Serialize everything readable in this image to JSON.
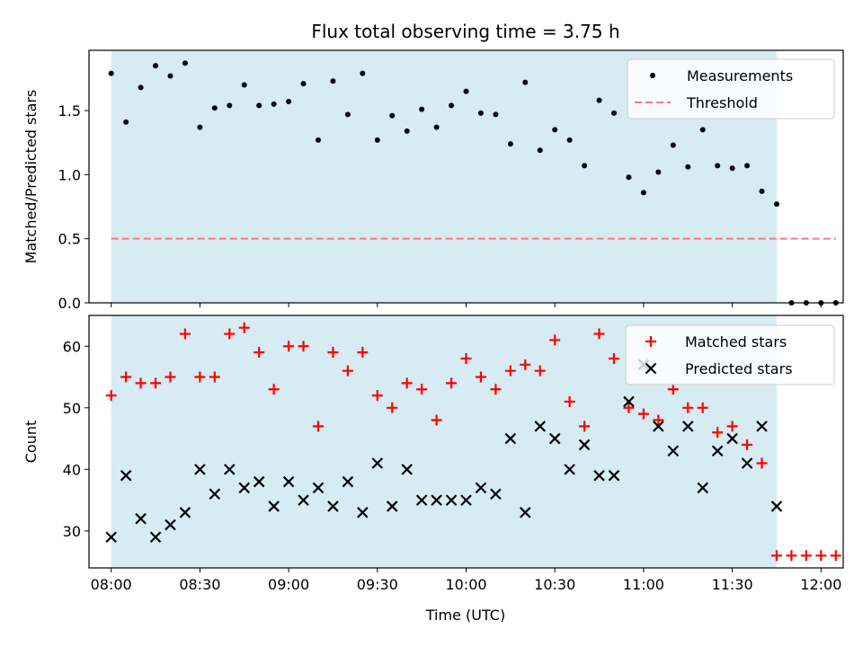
{
  "chart_data": {
    "title": "Flux total observing time = 3.75 h",
    "xlabel": "Time (UTC)",
    "x_tick_labels": [
      "08:00",
      "08:30",
      "09:00",
      "09:30",
      "10:00",
      "10:30",
      "11:00",
      "11:30",
      "12:00"
    ],
    "x_ticks_min": [
      0,
      30,
      60,
      90,
      120,
      150,
      180,
      210,
      240
    ],
    "xlim_min": [
      -7.5,
      247.5
    ],
    "shaded_span_min": [
      0,
      225
    ],
    "shade_color": "#add8e6",
    "panels": [
      {
        "type": "scatter",
        "ylabel": "Matched/Predicted stars",
        "ylim": [
          0,
          1.97
        ],
        "y_ticks": [
          0.0,
          0.5,
          1.0,
          1.5
        ],
        "y_tick_labels": [
          "0.0",
          "0.5",
          "1.0",
          "1.5"
        ],
        "legend_position": "top-right",
        "series": [
          {
            "name": "Measurements",
            "marker": "dot",
            "color": "#000000",
            "x_min": [
              0,
              5,
              10,
              15,
              20,
              25,
              30,
              35,
              40,
              45,
              50,
              55,
              60,
              65,
              70,
              75,
              80,
              85,
              90,
              95,
              100,
              105,
              110,
              115,
              120,
              125,
              130,
              135,
              140,
              145,
              150,
              155,
              160,
              165,
              170,
              175,
              180,
              185,
              190,
              195,
              200,
              205,
              210,
              215,
              220,
              225,
              230,
              235,
              240,
              245
            ],
            "y": [
              1.79,
              1.41,
              1.68,
              1.85,
              1.77,
              1.87,
              1.37,
              1.52,
              1.54,
              1.7,
              1.54,
              1.55,
              1.57,
              1.71,
              1.27,
              1.73,
              1.47,
              1.79,
              1.27,
              1.46,
              1.34,
              1.51,
              1.37,
              1.54,
              1.65,
              1.48,
              1.47,
              1.24,
              1.72,
              1.19,
              1.35,
              1.27,
              1.07,
              1.58,
              1.48,
              0.98,
              0.86,
              1.02,
              1.23,
              1.06,
              1.35,
              1.07,
              1.05,
              1.07,
              0.87,
              0.77,
              0.0,
              0.0,
              0.0,
              0.0
            ]
          },
          {
            "name": "Threshold",
            "type": "line",
            "style": "dashed",
            "color": "#ff7777",
            "x_min": [
              0,
              245
            ],
            "y": [
              0.5,
              0.5
            ]
          }
        ]
      },
      {
        "type": "scatter",
        "ylabel": "Count",
        "ylim": [
          24,
          65
        ],
        "y_ticks": [
          30,
          40,
          50,
          60
        ],
        "y_tick_labels": [
          "30",
          "40",
          "50",
          "60"
        ],
        "legend_position": "top-right",
        "series": [
          {
            "name": "Matched stars",
            "marker": "plus",
            "color": "#ff0000",
            "x_min": [
              0,
              5,
              10,
              15,
              20,
              25,
              30,
              35,
              40,
              45,
              50,
              55,
              60,
              65,
              70,
              75,
              80,
              85,
              90,
              95,
              100,
              105,
              110,
              115,
              120,
              125,
              130,
              135,
              140,
              145,
              150,
              155,
              160,
              165,
              170,
              175,
              180,
              185,
              190,
              195,
              200,
              205,
              210,
              215,
              220,
              225,
              230,
              235,
              240,
              245
            ],
            "y": [
              52,
              55,
              54,
              54,
              55,
              62,
              55,
              55,
              62,
              63,
              59,
              53,
              60,
              60,
              47,
              59,
              56,
              59,
              52,
              50,
              54,
              53,
              48,
              54,
              58,
              55,
              53,
              56,
              57,
              56,
              61,
              51,
              47,
              62,
              58,
              50,
              49,
              48,
              53,
              50,
              50,
              46,
              47,
              44,
              41,
              26,
              26,
              26,
              26,
              26
            ]
          },
          {
            "name": "Predicted stars",
            "marker": "x",
            "color": "#000000",
            "x_min": [
              0,
              5,
              10,
              15,
              20,
              25,
              30,
              35,
              40,
              45,
              50,
              55,
              60,
              65,
              70,
              75,
              80,
              85,
              90,
              95,
              100,
              105,
              110,
              115,
              120,
              125,
              130,
              135,
              140,
              145,
              150,
              155,
              160,
              165,
              170,
              175,
              180,
              185,
              190,
              195,
              200,
              205,
              210,
              215,
              220,
              225
            ],
            "y": [
              29,
              39,
              32,
              29,
              31,
              33,
              40,
              36,
              40,
              37,
              38,
              34,
              38,
              35,
              37,
              34,
              38,
              33,
              41,
              34,
              40,
              35,
              35,
              35,
              35,
              37,
              36,
              45,
              33,
              47,
              45,
              40,
              44,
              39,
              39,
              51,
              57,
              47,
              43,
              47,
              37,
              43,
              45,
              41,
              47,
              34
            ]
          }
        ]
      }
    ]
  }
}
